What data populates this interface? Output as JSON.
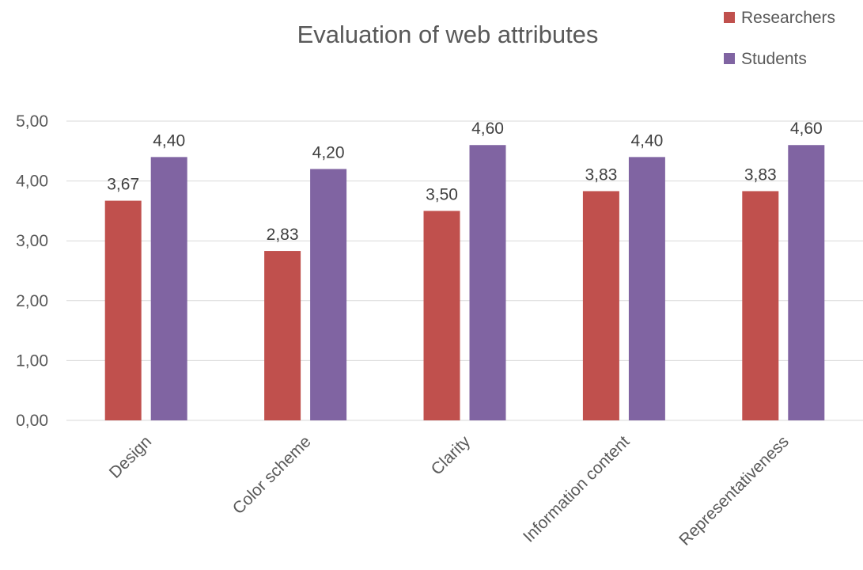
{
  "chart_data": {
    "type": "bar",
    "title": "Evaluation of web attributes",
    "categories": [
      "Design",
      "Color scheme",
      "Clarity",
      "Information content",
      "Representativeness"
    ],
    "series": [
      {
        "name": "Researchers",
        "color": "#c0504d",
        "values": [
          3.67,
          2.83,
          3.5,
          3.83,
          3.83
        ],
        "labels": [
          "3,67",
          "2,83",
          "3,50",
          "3,83",
          "3,83"
        ]
      },
      {
        "name": "Students",
        "color": "#8064a2",
        "values": [
          4.4,
          4.2,
          4.6,
          4.4,
          4.6
        ],
        "labels": [
          "4,40",
          "4,20",
          "4,60",
          "4,40",
          "4,60"
        ]
      }
    ],
    "ylim": [
      0,
      5
    ],
    "yticks": [
      0,
      1,
      2,
      3,
      4,
      5
    ],
    "ytick_labels": [
      "0,00",
      "1,00",
      "2,00",
      "3,00",
      "4,00",
      "5,00"
    ],
    "grid": true,
    "legend_position": "top-right"
  }
}
